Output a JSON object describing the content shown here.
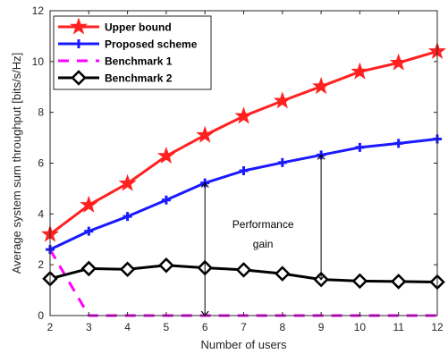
{
  "chart_data": {
    "type": "line",
    "title": "",
    "xlabel": "Number of users",
    "ylabel": "Average system sum throughput [bits/s/Hz]",
    "xlim": [
      2,
      12
    ],
    "ylim": [
      0,
      12
    ],
    "xticks": [
      2,
      3,
      4,
      5,
      6,
      7,
      8,
      9,
      10,
      11,
      12
    ],
    "yticks": [
      0,
      2,
      4,
      6,
      8,
      10,
      12
    ],
    "grid": false,
    "legend_position": "top-left",
    "x": [
      2,
      3,
      4,
      5,
      6,
      7,
      8,
      9,
      10,
      11,
      12
    ],
    "series": [
      {
        "name": "Upper bound",
        "color": "#ff2020",
        "marker": "star",
        "line": "solid",
        "values": [
          3.2,
          4.35,
          5.2,
          6.28,
          7.1,
          7.85,
          8.45,
          9.02,
          9.6,
          9.95,
          10.4
        ]
      },
      {
        "name": "Proposed scheme",
        "color": "#1a1aff",
        "marker": "plus",
        "line": "solid",
        "values": [
          2.6,
          3.32,
          3.9,
          4.55,
          5.22,
          5.7,
          6.02,
          6.32,
          6.62,
          6.78,
          6.95
        ]
      },
      {
        "name": "Benchmark 1",
        "color": "#ff00ff",
        "marker": "none",
        "line": "dashed",
        "values": [
          2.6,
          0,
          0,
          0,
          0,
          0,
          0,
          0,
          0,
          0,
          0
        ]
      },
      {
        "name": "Benchmark 2",
        "color": "#000000",
        "marker": "diamond",
        "line": "solid",
        "values": [
          1.45,
          1.85,
          1.82,
          1.98,
          1.88,
          1.8,
          1.65,
          1.42,
          1.36,
          1.34,
          1.32
        ]
      }
    ],
    "annotations": [
      {
        "text_lines": [
          "Performance",
          "gain"
        ]
      }
    ],
    "arrows": [
      {
        "x": 6,
        "y_from": 0,
        "y_to": 5.22
      },
      {
        "x": 9,
        "y_from": 1.42,
        "y_to": 6.32
      }
    ]
  }
}
